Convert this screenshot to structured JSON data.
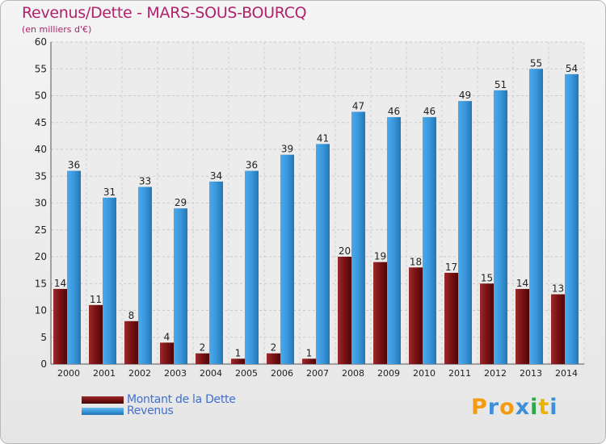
{
  "chart_data": {
    "type": "bar",
    "title": "Revenus/Dette - MARS-SOUS-BOURCQ",
    "subtitle": "(en milliers d'€)",
    "categories": [
      "2000",
      "2001",
      "2002",
      "2003",
      "2004",
      "2005",
      "2006",
      "2007",
      "2008",
      "2009",
      "2010",
      "2011",
      "2012",
      "2013",
      "2014"
    ],
    "series": [
      {
        "name": "Montant de la Dette",
        "color": "#7a1214",
        "values": [
          14,
          11,
          8,
          4,
          2,
          1,
          2,
          1,
          20,
          19,
          18,
          17,
          15,
          14,
          13
        ]
      },
      {
        "name": "Revenus",
        "color": "#3a97db",
        "values": [
          36,
          31,
          33,
          29,
          34,
          36,
          39,
          41,
          47,
          46,
          46,
          49,
          51,
          55,
          54
        ]
      }
    ],
    "ylim": [
      0,
      60
    ],
    "yticks": [
      0,
      5,
      10,
      15,
      20,
      25,
      30,
      35,
      40,
      45,
      50,
      55,
      60
    ],
    "grid": true,
    "legend": "bottom-left",
    "xlabel": "",
    "ylabel": ""
  },
  "logo": {
    "text": "Proxiti",
    "letters": [
      "P",
      "r",
      "o",
      "x",
      "i",
      "t",
      "i"
    ],
    "colors": [
      "#f39c12",
      "#3f8fd8",
      "#f39c12",
      "#3f8fd8",
      "#2aa84a",
      "#e8b400",
      "#3f8fd8"
    ]
  }
}
